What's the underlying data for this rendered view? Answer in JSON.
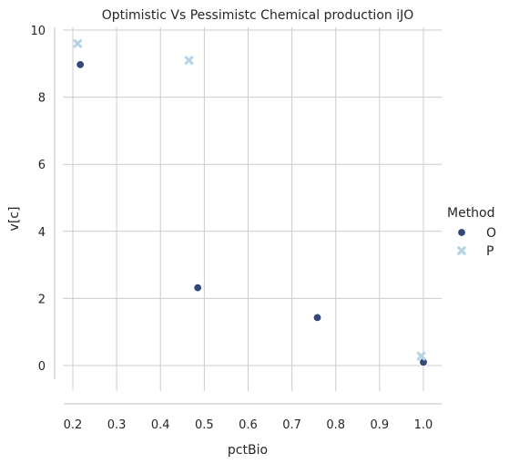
{
  "chart_data": {
    "type": "scatter",
    "title": "Optimistic Vs Pessimistc Chemical production iJO",
    "xlabel": "pctBio",
    "ylabel": "v[c]",
    "xlim": [
      0.2,
      1.0
    ],
    "ylim": [
      0,
      10
    ],
    "xticks": [
      0.2,
      0.3,
      0.4,
      0.5,
      0.6,
      0.7,
      0.8,
      0.9,
      1.0
    ],
    "xtick_labels": [
      "0.2",
      "0.3",
      "0.4",
      "0.5",
      "0.6",
      "0.7",
      "0.8",
      "0.9",
      "1.0"
    ],
    "yticks": [
      0,
      2,
      4,
      6,
      8,
      10
    ],
    "ytick_labels": [
      "0",
      "2",
      "4",
      "6",
      "8",
      "10"
    ],
    "grid": true,
    "legend": {
      "title": "Method",
      "placement": "right"
    },
    "series": [
      {
        "name": "O",
        "marker": "circle",
        "color": "#34477a",
        "x": [
          0.217,
          0.485,
          0.758,
          1.0
        ],
        "y": [
          8.97,
          2.32,
          1.43,
          0.1
        ]
      },
      {
        "name": "P",
        "marker": "x",
        "color": "#b5d3e3",
        "x": [
          0.211,
          0.465,
          0.995
        ],
        "y": [
          9.6,
          9.1,
          0.28
        ]
      }
    ]
  }
}
